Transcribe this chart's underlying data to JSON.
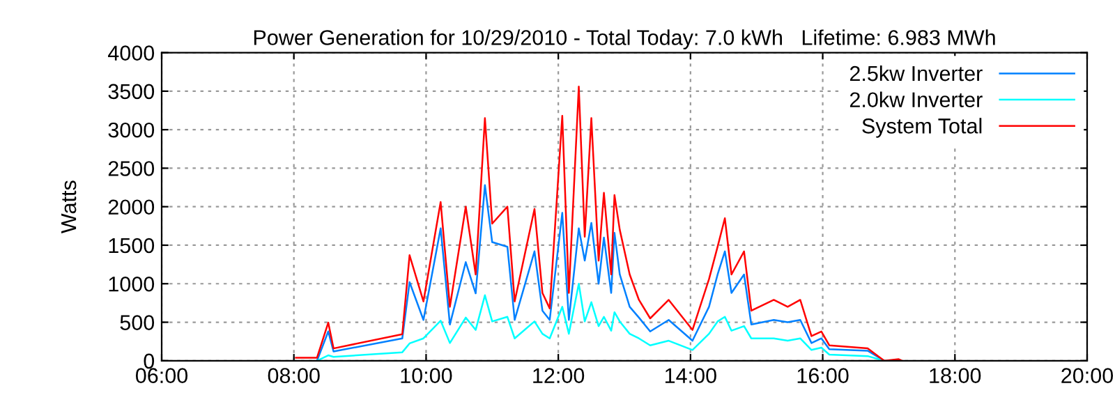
{
  "chart_data": {
    "type": "line",
    "title": "Power Generation for 10/29/2010 - Total Today: 7.0 kWh   Lifetime: 6.983 MWh",
    "ylabel": "Watts",
    "xlim": [
      6,
      20
    ],
    "xticks": [
      {
        "value": 6,
        "label": "06:00"
      },
      {
        "value": 8,
        "label": "08:00"
      },
      {
        "value": 10,
        "label": "10:00"
      },
      {
        "value": 12,
        "label": "12:00"
      },
      {
        "value": 14,
        "label": "14:00"
      },
      {
        "value": 16,
        "label": "16:00"
      },
      {
        "value": 18,
        "label": "18:00"
      },
      {
        "value": 20,
        "label": "20:00"
      }
    ],
    "ylim": [
      0,
      4000
    ],
    "yticks": [
      0,
      500,
      1000,
      1500,
      2000,
      2500,
      3000,
      3500,
      4000
    ],
    "grid": true,
    "legend": "top right",
    "line_style": "solid",
    "x": [
      8.35,
      8.52,
      8.6,
      9.64,
      9.75,
      9.96,
      10.22,
      10.36,
      10.6,
      10.75,
      10.89,
      11.0,
      11.23,
      11.34,
      11.64,
      11.76,
      11.87,
      12.06,
      12.16,
      12.31,
      12.4,
      12.5,
      12.61,
      12.69,
      12.8,
      12.85,
      12.93,
      13.08,
      13.22,
      13.39,
      13.67,
      14.03,
      14.28,
      14.41,
      14.52,
      14.62,
      14.81,
      14.92,
      15.26,
      15.47,
      15.66,
      15.83,
      15.98,
      16.1,
      16.68,
      16.93
    ],
    "series": [
      {
        "name": "2.5kw Inverter",
        "color": "#0080ff",
        "values": [
          0,
          380,
          120,
          290,
          1020,
          530,
          1720,
          470,
          1280,
          875,
          2280,
          1540,
          1480,
          530,
          1420,
          650,
          530,
          1920,
          530,
          1720,
          1300,
          1790,
          1000,
          1600,
          880,
          1660,
          1120,
          700,
          560,
          380,
          530,
          260,
          700,
          1120,
          1420,
          880,
          1120,
          470,
          530,
          500,
          530,
          230,
          290,
          150,
          130,
          0
        ]
      },
      {
        "name": "2.0kw Inverter",
        "color": "#00ffff",
        "values": [
          0,
          70,
          50,
          110,
          225,
          290,
          520,
          230,
          560,
          400,
          850,
          510,
          570,
          290,
          510,
          350,
          290,
          700,
          350,
          1000,
          510,
          760,
          450,
          570,
          390,
          630,
          510,
          350,
          290,
          200,
          260,
          140,
          350,
          510,
          570,
          390,
          450,
          290,
          290,
          260,
          290,
          140,
          170,
          80,
          60,
          0
        ]
      },
      {
        "name": "System Total",
        "color": "#ff0000",
        "x": [
          8.03,
          8.35,
          8.52,
          8.6,
          9.64,
          9.75,
          9.96,
          10.22,
          10.36,
          10.6,
          10.75,
          10.89,
          11.0,
          11.23,
          11.34,
          11.64,
          11.76,
          11.87,
          12.06,
          12.16,
          12.31,
          12.4,
          12.5,
          12.61,
          12.69,
          12.8,
          12.85,
          12.93,
          13.08,
          13.22,
          13.39,
          13.67,
          14.03,
          14.28,
          14.41,
          14.52,
          14.62,
          14.81,
          14.92,
          15.26,
          15.47,
          15.66,
          15.83,
          15.98,
          16.1,
          16.68,
          16.93,
          17.15,
          17.2
        ],
        "values": [
          40,
          40,
          495,
          160,
          345,
          1370,
          770,
          2060,
          700,
          2000,
          1120,
          3150,
          1780,
          2000,
          770,
          1970,
          880,
          680,
          3180,
          880,
          3560,
          1610,
          3150,
          1300,
          2180,
          1120,
          2150,
          1700,
          1120,
          790,
          550,
          790,
          400,
          1060,
          1480,
          1850,
          1120,
          1420,
          650,
          790,
          700,
          790,
          320,
          380,
          200,
          160,
          0,
          20,
          0
        ]
      }
    ]
  }
}
